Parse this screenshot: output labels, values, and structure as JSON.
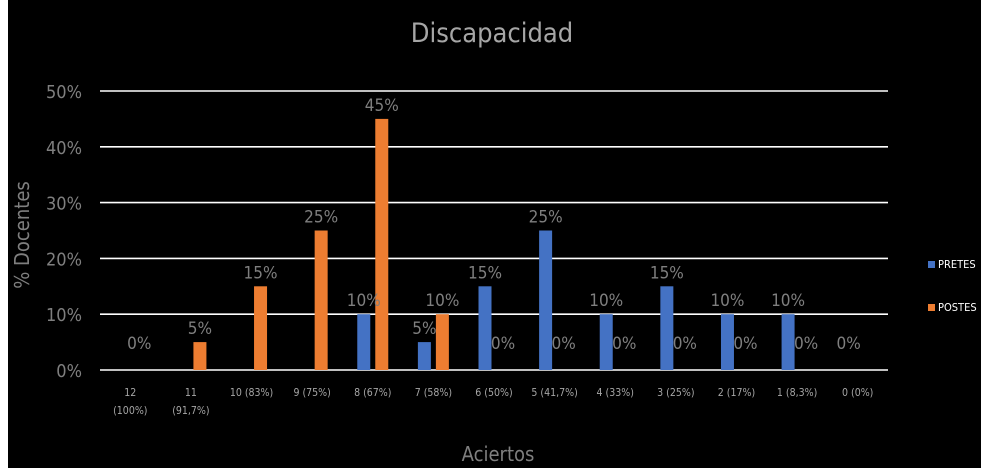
{
  "chart_data": {
    "type": "bar",
    "title": "Discapacidad",
    "xlabel": "Aciertos",
    "ylabel": "% Docentes",
    "ylim": [
      0,
      50
    ],
    "y_ticks": [
      "0%",
      "10%",
      "20%",
      "30%",
      "40%",
      "50%"
    ],
    "grid": true,
    "legend_position": "right",
    "categories": [
      "12 (100%)",
      "11 (91,7%)",
      "10 (83%)",
      "9 (75%)",
      "8 (67%)",
      "7 (58%)",
      "6 (50%)",
      "5 (41,7%)",
      "4 (33%)",
      "3 (25%)",
      "2 (17%)",
      "1 (8,3%)",
      "0 (0%)"
    ],
    "category_lines": [
      [
        "12",
        "(100%)"
      ],
      [
        "11",
        "(91,7%)"
      ],
      [
        "10 (83%)"
      ],
      [
        "9 (75%)"
      ],
      [
        "8 (67%)"
      ],
      [
        "7 (58%)"
      ],
      [
        "6 (50%)"
      ],
      [
        "5 (41,7%)"
      ],
      [
        "4 (33%)"
      ],
      [
        "3 (25%)"
      ],
      [
        "2 (17%)"
      ],
      [
        "1 (8,3%)"
      ],
      [
        "0 (0%)"
      ]
    ],
    "series": [
      {
        "name": "PRETES",
        "color": "#4472c4",
        "values": [
          null,
          null,
          null,
          null,
          10,
          5,
          15,
          25,
          10,
          15,
          10,
          10,
          0
        ],
        "labels": [
          "",
          "",
          "",
          "",
          "10%",
          "5%",
          "15%",
          "25%",
          "10%",
          "15%",
          "10%",
          "10%",
          "0%"
        ]
      },
      {
        "name": "POSTES",
        "color": "#ed7d31",
        "values": [
          0,
          5,
          15,
          25,
          45,
          10,
          0,
          0,
          0,
          0,
          0,
          0,
          null
        ],
        "labels": [
          "0%",
          "5%",
          "15%",
          "25%",
          "45%",
          "10%",
          "0%",
          "0%",
          "0%",
          "0%",
          "0%",
          "0%",
          ""
        ]
      }
    ]
  }
}
